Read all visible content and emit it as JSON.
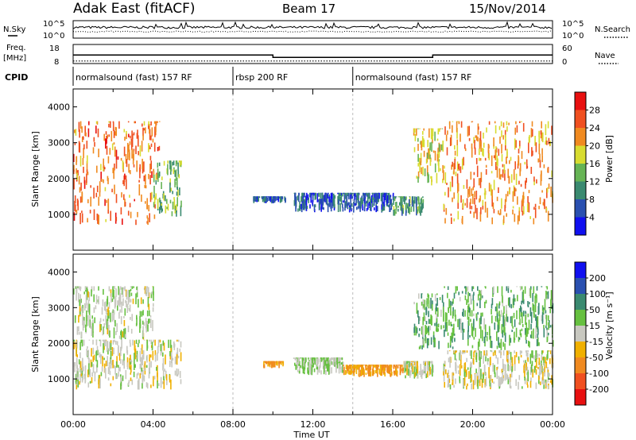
{
  "header": {
    "radar": "Adak East (fitACF)",
    "beam": "Beam 17",
    "date": "15/Nov/2014"
  },
  "strips": {
    "nsky_label": "N.Sky",
    "nsearch_label": "N.Search",
    "freq_label": "Freq.",
    "freq_unit": "[MHz]",
    "nave_label": "Nave",
    "cpid_label": "CPID",
    "exp_ticks_left": [
      "10^5",
      "10^0"
    ],
    "exp_ticks_right": [
      "10^5",
      "10^0"
    ],
    "freq_ticks": [
      "18",
      "8"
    ],
    "nave_ticks": [
      "60",
      "0"
    ],
    "freq_steps": [
      {
        "t0": 0,
        "t1": 10,
        "mhz": 12.5
      },
      {
        "t0": 10,
        "t1": 18,
        "mhz": 11.2
      },
      {
        "t0": 18,
        "t1": 24,
        "mhz": 12.5
      }
    ],
    "nave_level": 8
  },
  "cpid_segments": [
    {
      "label": "normalsound (fast) 157 RF",
      "t0": 0,
      "t1": 8
    },
    {
      "label": "rbsp 200 RF",
      "t0": 8,
      "t1": 14
    },
    {
      "label": "normalsound (fast) 157 RF",
      "t0": 14,
      "t1": 24
    }
  ],
  "chart_data": [
    {
      "type": "heatmap",
      "title": "",
      "xlabel": "Time UT",
      "ylabel": "Slant Range [km]",
      "xlim": [
        0,
        24
      ],
      "ylim": [
        0,
        4500
      ],
      "x_ticks": [
        "00:00",
        "04:00",
        "08:00",
        "12:00",
        "16:00",
        "20:00",
        "00:00"
      ],
      "y_ticks": [
        1000,
        2000,
        3000,
        4000
      ],
      "colorbar": {
        "label": "Power [dB]",
        "ticks": [
          4,
          8,
          12,
          16,
          20,
          24,
          28
        ],
        "colors": [
          "#1010f0",
          "#2a50b0",
          "#3a8a70",
          "#66b455",
          "#d8dc30",
          "#f08a20",
          "#f05020",
          "#e81010"
        ]
      },
      "regions": [
        {
          "t0": 0.0,
          "t1": 4.3,
          "r0": 700,
          "r1": 3600,
          "value": 24
        },
        {
          "t0": 4.0,
          "t1": 5.4,
          "r0": 900,
          "r1": 2500,
          "value": 14
        },
        {
          "t0": 9.0,
          "t1": 10.6,
          "r0": 1300,
          "r1": 1500,
          "value": 6
        },
        {
          "t0": 11.0,
          "t1": 16.0,
          "r0": 1050,
          "r1": 1600,
          "value": 7
        },
        {
          "t0": 16.0,
          "t1": 17.5,
          "r0": 950,
          "r1": 1500,
          "value": 12
        },
        {
          "t0": 17.0,
          "t1": 18.5,
          "r0": 1800,
          "r1": 3400,
          "value": 18
        },
        {
          "t0": 18.5,
          "t1": 24.0,
          "r0": 700,
          "r1": 3600,
          "value": 22
        }
      ]
    },
    {
      "type": "heatmap",
      "title": "",
      "xlabel": "Time UT",
      "ylabel": "Slant Range [km]",
      "xlim": [
        0,
        24
      ],
      "ylim": [
        0,
        4500
      ],
      "x_ticks": [
        "00:00",
        "04:00",
        "08:00",
        "12:00",
        "16:00",
        "20:00",
        "00:00"
      ],
      "y_ticks": [
        1000,
        2000,
        3000,
        4000
      ],
      "colorbar": {
        "label": "Velocity [m s⁻¹]",
        "ticks": [
          "-200",
          "-100",
          "-50",
          "-15",
          "15",
          "50",
          "100",
          "200"
        ],
        "colors": [
          "#e81010",
          "#f05020",
          "#f08a20",
          "#f0b000",
          "#c8c8c0",
          "#66c040",
          "#3a8a70",
          "#2a50b0",
          "#1010f0"
        ]
      },
      "regions": [
        {
          "t0": 0.0,
          "t1": 5.4,
          "r0": 700,
          "r1": 2100,
          "value": 0
        },
        {
          "t0": 0.0,
          "t1": 4.0,
          "r0": 2100,
          "r1": 3600,
          "value": 10
        },
        {
          "t0": 9.5,
          "t1": 10.5,
          "r0": 1300,
          "r1": 1500,
          "value": -60
        },
        {
          "t0": 11.0,
          "t1": 13.5,
          "r0": 1100,
          "r1": 1600,
          "value": 20
        },
        {
          "t0": 13.5,
          "t1": 16.5,
          "r0": 1050,
          "r1": 1400,
          "value": -60
        },
        {
          "t0": 16.5,
          "t1": 18.0,
          "r0": 1000,
          "r1": 1500,
          "value": 0
        },
        {
          "t0": 17.0,
          "t1": 18.5,
          "r0": 1800,
          "r1": 3400,
          "value": 40
        },
        {
          "t0": 18.5,
          "t1": 24.0,
          "r0": 700,
          "r1": 1800,
          "value": 0
        },
        {
          "t0": 18.5,
          "t1": 24.0,
          "r0": 1800,
          "r1": 3600,
          "value": 40
        }
      ]
    }
  ]
}
